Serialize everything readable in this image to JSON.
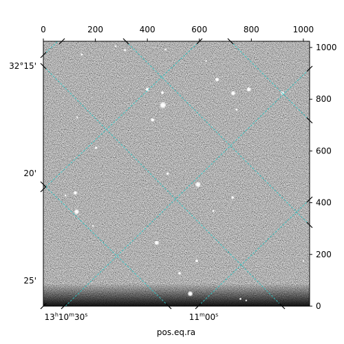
{
  "chart_data": {
    "type": "heatmap",
    "title": "",
    "xlabel": "pos.eq.ra",
    "ylabel": "",
    "background_colormap": "gray",
    "pixel_x_axis": {
      "position": "top",
      "range": [
        0,
        1024
      ],
      "ticks": [
        {
          "value": 0,
          "label": "0"
        },
        {
          "value": 200,
          "label": "200"
        },
        {
          "value": 400,
          "label": "400"
        },
        {
          "value": 600,
          "label": "600"
        },
        {
          "value": 800,
          "label": "800"
        },
        {
          "value": 1000,
          "label": "1000"
        }
      ]
    },
    "pixel_y_axis": {
      "position": "right",
      "range": [
        0,
        1024
      ],
      "ticks": [
        {
          "value": 0,
          "label": "0"
        },
        {
          "value": 200,
          "label": "200"
        },
        {
          "value": 400,
          "label": "400"
        },
        {
          "value": 600,
          "label": "600"
        },
        {
          "value": 800,
          "label": "800"
        },
        {
          "value": 1000,
          "label": "1000"
        }
      ]
    },
    "ra_ticks": [
      {
        "value": 30,
        "main": "13",
        "h": "h",
        "m1": "10",
        "m": "m",
        "s1": "30",
        "s": "s"
      },
      {
        "value": 60,
        "main": "11",
        "m": "m",
        "s1": "00",
        "s": "s"
      }
    ],
    "dec_ticks": [
      {
        "value": 15,
        "label": "32°15'"
      },
      {
        "value": 20,
        "label": "20'"
      },
      {
        "value": 25,
        "label": "25'"
      }
    ],
    "grid": {
      "on": true,
      "color": "#2ec4c4",
      "style": "dashed"
    },
    "stars": [
      {
        "x": 148,
        "y": 973,
        "b": 1.5
      },
      {
        "x": 314,
        "y": 990,
        "b": 1.6
      },
      {
        "x": 278,
        "y": 1005,
        "b": 1.3
      },
      {
        "x": 470,
        "y": 993,
        "b": 1.2
      },
      {
        "x": 626,
        "y": 948,
        "b": 1.2
      },
      {
        "x": 668,
        "y": 876,
        "b": 2.6
      },
      {
        "x": 730,
        "y": 823,
        "b": 2.8
      },
      {
        "x": 790,
        "y": 838,
        "b": 2.8
      },
      {
        "x": 400,
        "y": 838,
        "b": 2.4
      },
      {
        "x": 458,
        "y": 825,
        "b": 2.0
      },
      {
        "x": 920,
        "y": 824,
        "b": 2.2
      },
      {
        "x": 460,
        "y": 777,
        "b": 4.0
      },
      {
        "x": 420,
        "y": 720,
        "b": 2.4
      },
      {
        "x": 743,
        "y": 760,
        "b": 1.5
      },
      {
        "x": 130,
        "y": 730,
        "b": 1.2
      },
      {
        "x": 203,
        "y": 612,
        "b": 1.8
      },
      {
        "x": 478,
        "y": 512,
        "b": 1.8
      },
      {
        "x": 595,
        "y": 470,
        "b": 3.4
      },
      {
        "x": 123,
        "y": 438,
        "b": 2.4
      },
      {
        "x": 85,
        "y": 428,
        "b": 1.3
      },
      {
        "x": 728,
        "y": 420,
        "b": 1.9
      },
      {
        "x": 654,
        "y": 368,
        "b": 1.5
      },
      {
        "x": 128,
        "y": 365,
        "b": 3.0
      },
      {
        "x": 191,
        "y": 310,
        "b": 1.3
      },
      {
        "x": 436,
        "y": 245,
        "b": 2.8
      },
      {
        "x": 590,
        "y": 175,
        "b": 1.9
      },
      {
        "x": 524,
        "y": 127,
        "b": 1.9
      },
      {
        "x": 565,
        "y": 48,
        "b": 3.2
      },
      {
        "x": 758,
        "y": 28,
        "b": 1.4
      },
      {
        "x": 780,
        "y": 22,
        "b": 1.2
      },
      {
        "x": 1000,
        "y": 175,
        "b": 1.2
      }
    ]
  }
}
